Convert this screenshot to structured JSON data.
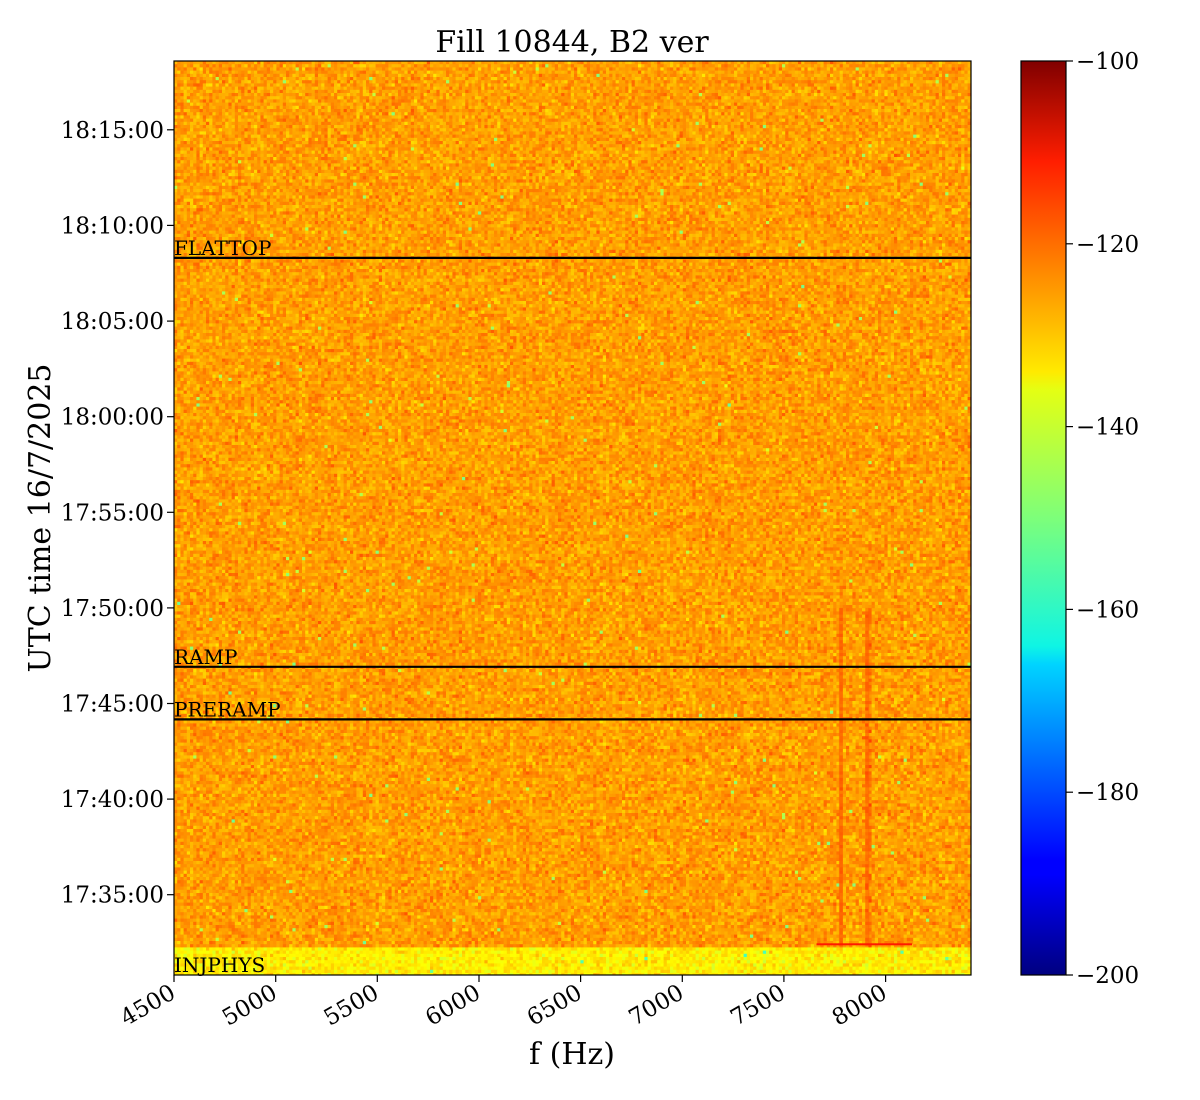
{
  "chart_data": {
    "type": "heatmap",
    "title": "Fill 10844, B2 ver",
    "xlabel": "f (Hz)",
    "ylabel": "UTC time 16/7/2025",
    "x_range": [
      4500,
      8420
    ],
    "x_ticks": [
      4500,
      5000,
      5500,
      6000,
      6500,
      7000,
      7500,
      8000
    ],
    "x_tick_labels": [
      "4500",
      "5000",
      "5500",
      "6000",
      "6500",
      "7000",
      "7500",
      "8000"
    ],
    "y_range": [
      "17:30:48",
      "18:18:36"
    ],
    "y_ticks": [
      "17:35:00",
      "17:40:00",
      "17:45:00",
      "17:50:00",
      "17:55:00",
      "18:00:00",
      "18:05:00",
      "18:10:00",
      "18:15:00"
    ],
    "colorbar": {
      "colormap": "jet",
      "range": [
        -200,
        -100
      ],
      "ticks": [
        -200,
        -180,
        -160,
        -140,
        -120,
        -100
      ],
      "tick_labels": [
        "−200",
        "−180",
        "−160",
        "−140",
        "−120",
        "−100"
      ]
    },
    "typical_level_db": -128,
    "injection_band_level_db": -136,
    "feature_line_hz": [
      7780,
      7910
    ],
    "annotations": [
      {
        "label": "INJPHYS",
        "time": "17:30:48"
      },
      {
        "label": "PRERAMP",
        "time": "17:44:10"
      },
      {
        "label": "RAMP",
        "time": "17:46:55"
      },
      {
        "label": "FLATTOP",
        "time": "18:08:18"
      }
    ]
  }
}
